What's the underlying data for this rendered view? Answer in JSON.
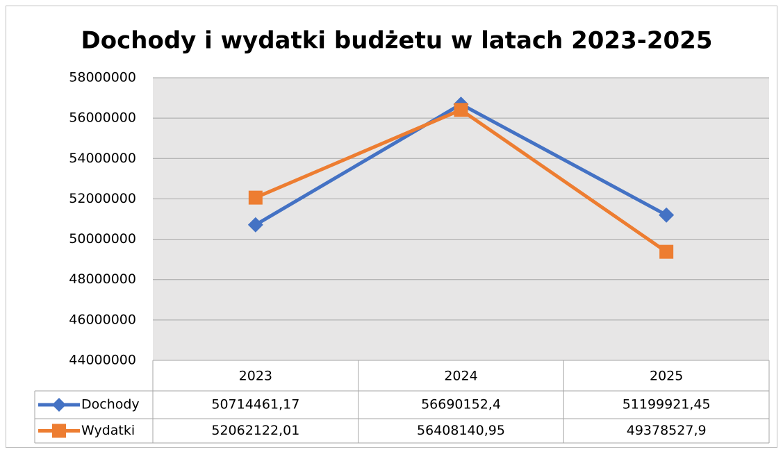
{
  "chart_data": {
    "type": "line",
    "title": "Dochody i wydatki budżetu w latach 2023-2025",
    "categories": [
      "2023",
      "2024",
      "2025"
    ],
    "series": [
      {
        "name": "Dochody",
        "color": "#4472c4",
        "marker": "diamond",
        "values": [
          50714461.17,
          56690152.4,
          51199921.45
        ],
        "value_labels": [
          "50714461,17",
          "56690152,4",
          "51199921,45"
        ]
      },
      {
        "name": "Wydatki",
        "color": "#ed7d31",
        "marker": "square",
        "values": [
          52062122.01,
          56408140.95,
          49378527.9
        ],
        "value_labels": [
          "52062122,01",
          "56408140,95",
          "49378527,9"
        ]
      }
    ],
    "ylim": [
      44000000,
      58000000
    ],
    "yticks": [
      44000000,
      46000000,
      48000000,
      50000000,
      52000000,
      54000000,
      56000000,
      58000000
    ],
    "grid": true,
    "data_table": true
  }
}
